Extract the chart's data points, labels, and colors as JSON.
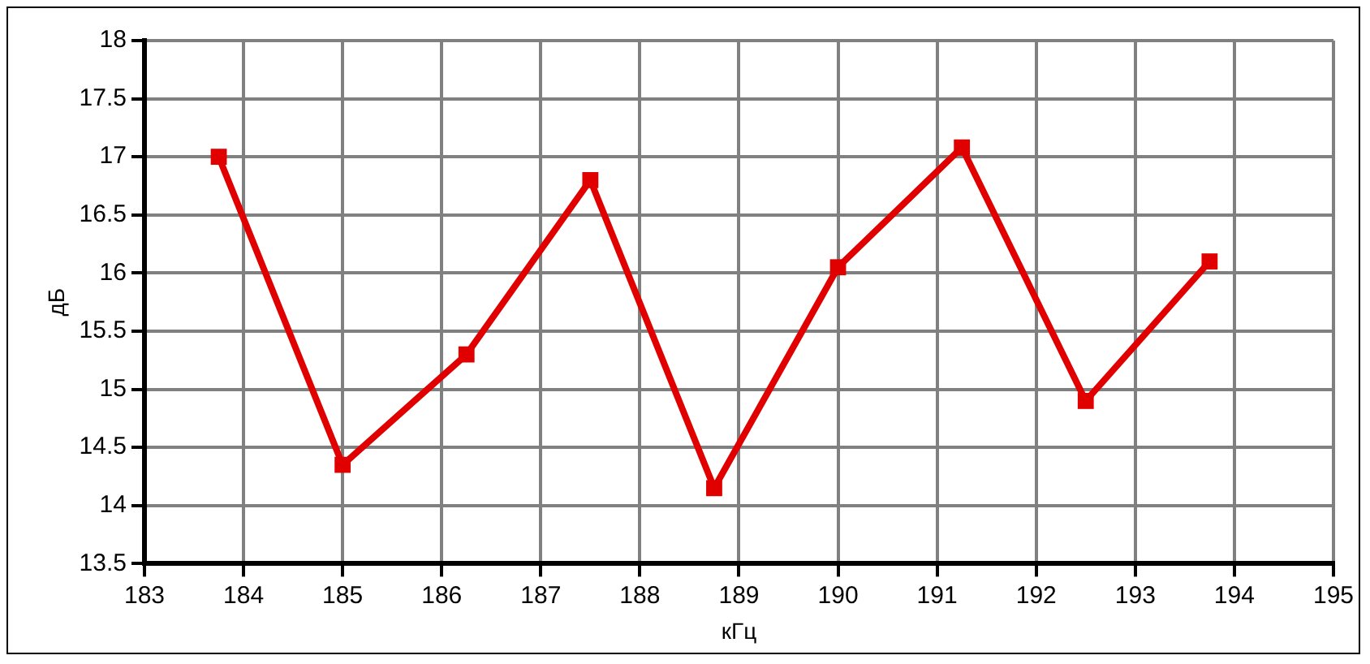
{
  "chart_data": {
    "type": "line",
    "xlabel": "кГц",
    "ylabel": "дБ",
    "x": [
      183.75,
      185,
      186.25,
      187.5,
      188.75,
      190,
      191.25,
      192.5,
      193.75
    ],
    "series": [
      {
        "color": "#e00000",
        "values": [
          17.0,
          14.35,
          15.3,
          16.8,
          14.15,
          16.05,
          17.08,
          14.9,
          16.1
        ]
      }
    ],
    "xlim": [
      183,
      195
    ],
    "xticks": [
      183,
      184,
      185,
      186,
      187,
      188,
      189,
      190,
      191,
      192,
      193,
      194,
      195
    ],
    "ylim": [
      13.5,
      18
    ],
    "yticks": [
      13.5,
      14,
      14.5,
      15,
      15.5,
      16,
      16.5,
      17,
      17.5,
      18
    ],
    "grid": true,
    "legend": false,
    "marker": "square",
    "line_style": "solid"
  }
}
